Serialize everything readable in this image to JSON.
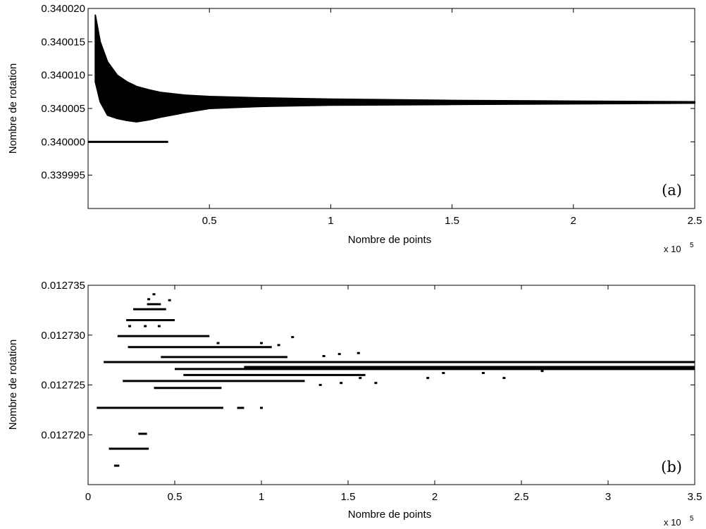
{
  "chart_data": [
    {
      "type": "scatter",
      "panel_label": "(a)",
      "xlabel": "Nombre de points",
      "ylabel": "Nombre de rotation",
      "x_multiplier": "x 10",
      "x_multiplier_exp": "5",
      "xlim": [
        0,
        2.5
      ],
      "ylim": [
        0.33999,
        0.34002
      ],
      "x_ticks": [
        0.5,
        1,
        1.5,
        2,
        2.5
      ],
      "x_tick_labels": [
        "0.5",
        "1",
        "1.5",
        "2",
        "2.5"
      ],
      "y_ticks": [
        0.339995,
        0.34,
        0.340005,
        0.34001,
        0.340015,
        0.34002
      ],
      "y_tick_labels": [
        "0.339995",
        "0.340000",
        "0.340005",
        "0.340010",
        "0.340015",
        "0.340020"
      ],
      "grid": false,
      "series": [
        {
          "role": "envelope_band",
          "x": [
            0.03,
            0.05,
            0.08,
            0.12,
            0.16,
            0.2,
            0.25,
            0.3,
            0.4,
            0.5,
            0.7,
            1.0,
            1.5,
            2.0,
            2.5
          ],
          "upper": [
            0.340019,
            0.340015,
            0.340012,
            0.34001,
            0.340009,
            0.3400083,
            0.3400078,
            0.3400074,
            0.340007,
            0.3400068,
            0.3400066,
            0.3400064,
            0.3400062,
            0.3400061,
            0.340006
          ],
          "lower": [
            0.340009,
            0.340006,
            0.340004,
            0.3400035,
            0.3400032,
            0.340003,
            0.3400033,
            0.3400037,
            0.3400044,
            0.340005,
            0.3400053,
            0.3400055,
            0.3400056,
            0.3400057,
            0.3400058
          ]
        },
        {
          "role": "line",
          "x": [
            0.0,
            0.33
          ],
          "y": [
            0.34,
            0.34
          ]
        }
      ]
    },
    {
      "type": "scatter",
      "panel_label": "(b)",
      "xlabel": "Nombre de points",
      "ylabel": "Nombre de rotation",
      "x_multiplier": "x 10",
      "x_multiplier_exp": "5",
      "xlim": [
        0,
        3.5
      ],
      "ylim": [
        0.012715,
        0.012735
      ],
      "x_ticks": [
        0,
        0.5,
        1,
        1.5,
        2,
        2.5,
        3,
        3.5
      ],
      "x_tick_labels": [
        "0",
        "0.5",
        "1",
        "1.5",
        "2",
        "2.5",
        "3",
        "3.5"
      ],
      "y_ticks": [
        0.01272,
        0.012725,
        0.01273,
        0.012735
      ],
      "y_tick_labels": [
        "0.012720",
        "0.012725",
        "0.012730",
        "0.012735"
      ],
      "grid": false,
      "segments": [
        {
          "x0": 0.09,
          "x1": 3.5,
          "y": 0.0127273
        },
        {
          "x0": 0.5,
          "x1": 3.5,
          "y": 0.0127266
        },
        {
          "x0": 0.9,
          "x1": 3.5,
          "y": 0.0127268
        },
        {
          "x0": 0.55,
          "x1": 1.6,
          "y": 0.012726
        },
        {
          "x0": 0.2,
          "x1": 1.25,
          "y": 0.0127254
        },
        {
          "x0": 0.38,
          "x1": 0.77,
          "y": 0.0127247
        },
        {
          "x0": 0.05,
          "x1": 0.78,
          "y": 0.0127227
        },
        {
          "x0": 0.17,
          "x1": 0.7,
          "y": 0.0127299
        },
        {
          "x0": 0.23,
          "x1": 1.06,
          "y": 0.0127288
        },
        {
          "x0": 0.42,
          "x1": 1.15,
          "y": 0.0127278
        },
        {
          "x0": 0.22,
          "x1": 0.5,
          "y": 0.0127315
        },
        {
          "x0": 0.26,
          "x1": 0.45,
          "y": 0.0127326
        },
        {
          "x0": 0.12,
          "x1": 0.35,
          "y": 0.0127186
        },
        {
          "x0": 0.15,
          "x1": 0.18,
          "y": 0.0127169
        },
        {
          "x0": 0.29,
          "x1": 0.34,
          "y": 0.0127201
        },
        {
          "x0": 0.34,
          "x1": 0.42,
          "y": 0.0127331
        },
        {
          "x0": 0.86,
          "x1": 0.9,
          "y": 0.0127227
        }
      ],
      "points": [
        {
          "x": 0.38,
          "y": 0.0127341
        },
        {
          "x": 0.47,
          "y": 0.0127335
        },
        {
          "x": 0.35,
          "y": 0.0127336
        },
        {
          "x": 0.41,
          "y": 0.0127309
        },
        {
          "x": 0.33,
          "y": 0.0127309
        },
        {
          "x": 0.24,
          "y": 0.0127309
        },
        {
          "x": 1.0,
          "y": 0.0127227
        },
        {
          "x": 1.18,
          "y": 0.0127298
        },
        {
          "x": 0.75,
          "y": 0.0127292
        },
        {
          "x": 1.0,
          "y": 0.0127292
        },
        {
          "x": 1.1,
          "y": 0.012729
        },
        {
          "x": 1.45,
          "y": 0.0127281
        },
        {
          "x": 1.56,
          "y": 0.0127282
        },
        {
          "x": 1.36,
          "y": 0.0127279
        },
        {
          "x": 1.34,
          "y": 0.012725
        },
        {
          "x": 1.46,
          "y": 0.0127252
        },
        {
          "x": 1.66,
          "y": 0.0127252
        },
        {
          "x": 1.96,
          "y": 0.0127257
        },
        {
          "x": 2.4,
          "y": 0.0127257
        },
        {
          "x": 1.57,
          "y": 0.0127257
        },
        {
          "x": 2.28,
          "y": 0.0127262
        },
        {
          "x": 2.05,
          "y": 0.0127262
        },
        {
          "x": 2.62,
          "y": 0.0127264
        }
      ]
    }
  ]
}
